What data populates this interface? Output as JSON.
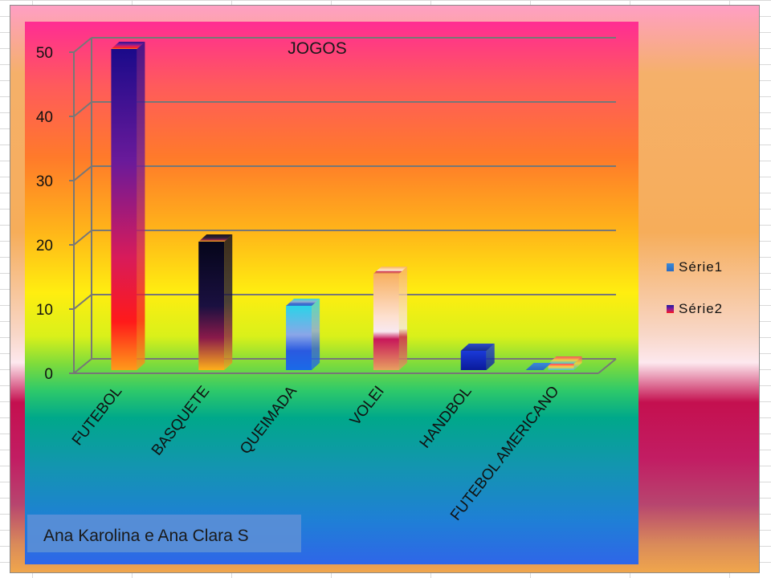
{
  "chart_data": {
    "type": "bar",
    "title": "JOGOS",
    "categories": [
      "FUTEBOL",
      "BASQUETE",
      "QUEIMADA",
      "VOLEI",
      "HANDBOL",
      "FUTEBOL AMERICANO"
    ],
    "series": [
      {
        "name": "Série1",
        "values": [
          0,
          0,
          0,
          0,
          0,
          0
        ]
      },
      {
        "name": "Série2",
        "values": [
          50,
          20,
          10,
          15,
          3,
          1
        ]
      }
    ],
    "yticks": [
      0,
      10,
      20,
      30,
      40,
      50
    ],
    "ylim": [
      0,
      50
    ],
    "grid": true,
    "legend_position": "right",
    "style": "3d-column"
  },
  "footer": {
    "credit": "Ana Karolina e Ana Clara S"
  }
}
